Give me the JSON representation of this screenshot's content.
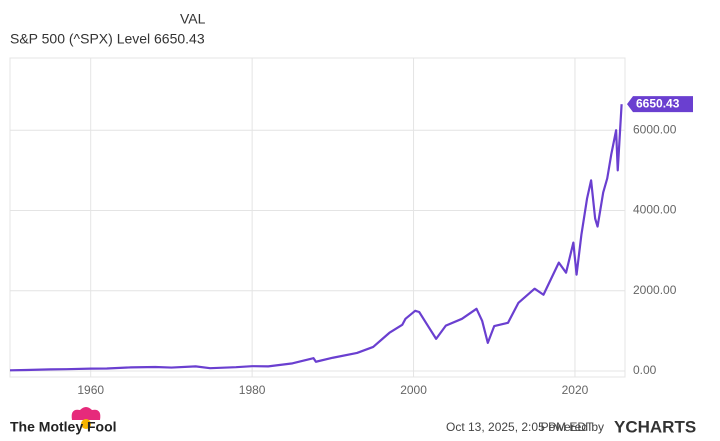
{
  "chart_data": {
    "type": "line",
    "legend_header": "VAL",
    "x": [
      1950,
      1952,
      1955,
      1957,
      1960,
      1962,
      1965,
      1968,
      1970,
      1973,
      1974.8,
      1978,
      1980,
      1982,
      1985,
      1987.6,
      1987.9,
      1990,
      1993,
      1995,
      1997,
      1998.6,
      1999,
      2000.2,
      2000.7,
      2001.7,
      2002.8,
      2004,
      2006,
      2007.8,
      2008.5,
      2009.2,
      2010,
      2011.7,
      2013,
      2015,
      2016.1,
      2018,
      2018.9,
      2019.8,
      2020.2,
      2020.8,
      2021.5,
      2022,
      2022.5,
      2022.8,
      2023.5,
      2024,
      2024.5,
      2025.1,
      2025.3,
      2025.78
    ],
    "series": [
      {
        "name": "S&P 500 (^SPX) Level",
        "color": "#6a3fd0",
        "values": [
          17,
          24,
          40,
          45,
          58,
          62,
          90,
          100,
          85,
          115,
          70,
          95,
          120,
          115,
          190,
          320,
          230,
          330,
          450,
          600,
          950,
          1150,
          1300,
          1500,
          1470,
          1150,
          800,
          1130,
          1300,
          1550,
          1250,
          700,
          1120,
          1200,
          1700,
          2050,
          1900,
          2700,
          2450,
          3200,
          2400,
          3400,
          4300,
          4750,
          3800,
          3600,
          4450,
          4800,
          5400,
          6000,
          5000,
          6650.43
        ]
      }
    ],
    "xlim": [
      1950,
      2026.2
    ],
    "ylim": [
      -150,
      7800
    ],
    "xticks": [
      1960,
      1980,
      2000,
      2020
    ],
    "yticks": [
      {
        "value": 0,
        "label": "0.00"
      },
      {
        "value": 2000,
        "label": "2000.00"
      },
      {
        "value": 4000,
        "label": "4000.00"
      },
      {
        "value": 6000,
        "label": "6000.00"
      }
    ],
    "grid": true
  },
  "footer": {
    "brand": "The Motley Fool",
    "timestamp": "Oct 13, 2025, 2:05 PM EDT",
    "powered_by": "Powered by",
    "logo": "YCHARTS"
  }
}
